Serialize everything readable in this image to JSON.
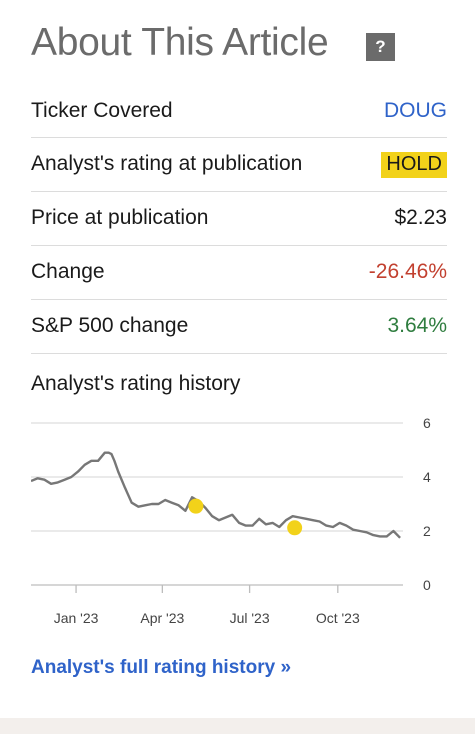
{
  "header": {
    "title": "About This Article",
    "help_icon": "?"
  },
  "rows": {
    "ticker": {
      "label": "Ticker Covered",
      "value": "DOUG"
    },
    "rating": {
      "label": "Analyst's rating at publication",
      "value": "HOLD"
    },
    "price": {
      "label": "Price at publication",
      "value": "$2.23"
    },
    "change": {
      "label": "Change",
      "value": "-26.46%"
    },
    "sp500": {
      "label": "S&P 500 change",
      "value": "3.64%"
    }
  },
  "history": {
    "label": "Analyst's rating history"
  },
  "full_history_link": "Analyst's full rating history »",
  "colors": {
    "link": "#2f63c9",
    "hold_badge": "#f2d21a",
    "negative": "#c2402f",
    "positive": "#2f7d3f",
    "line": "#777777",
    "marker": "#f2d21a"
  },
  "chart_data": {
    "type": "line",
    "x_ticks": [
      "Jan '23",
      "Apr '23",
      "Jul '23",
      "Oct '23"
    ],
    "x_tick_dates": [
      "2023-01-01",
      "2023-04-01",
      "2023-07-01",
      "2023-10-01"
    ],
    "y_ticks": [
      "0",
      "2",
      "4",
      "6"
    ],
    "ylim": [
      0,
      6
    ],
    "xlim": [
      "2022-11-15",
      "2023-12-08"
    ],
    "grid": true,
    "series": [
      {
        "x": [
          "2022-11-15",
          "2022-11-22",
          "2022-11-29",
          "2022-12-06",
          "2022-12-13",
          "2022-12-20",
          "2022-12-27",
          "2023-01-03",
          "2023-01-10",
          "2023-01-17",
          "2023-01-24",
          "2023-01-31",
          "2023-02-04",
          "2023-02-07",
          "2023-02-10",
          "2023-02-14",
          "2023-02-21",
          "2023-02-28",
          "2023-03-07",
          "2023-03-14",
          "2023-03-21",
          "2023-03-28",
          "2023-04-04",
          "2023-04-11",
          "2023-04-18",
          "2023-04-25",
          "2023-05-02",
          "2023-05-09",
          "2023-05-16",
          "2023-05-23",
          "2023-05-30",
          "2023-06-06",
          "2023-06-13",
          "2023-06-20",
          "2023-06-27",
          "2023-07-04",
          "2023-07-11",
          "2023-07-18",
          "2023-07-25",
          "2023-08-01",
          "2023-08-08",
          "2023-08-15",
          "2023-08-22",
          "2023-08-29",
          "2023-09-05",
          "2023-09-12",
          "2023-09-19",
          "2023-09-26",
          "2023-10-03",
          "2023-10-10",
          "2023-10-17",
          "2023-10-24",
          "2023-10-31",
          "2023-11-07",
          "2023-11-14",
          "2023-11-21",
          "2023-11-28",
          "2023-12-05"
        ],
        "values": [
          3.85,
          3.95,
          3.9,
          3.75,
          3.8,
          3.9,
          4.0,
          4.2,
          4.45,
          4.6,
          4.6,
          4.9,
          4.9,
          4.85,
          4.6,
          4.2,
          3.6,
          3.05,
          2.9,
          2.95,
          3.0,
          3.0,
          3.15,
          3.05,
          2.95,
          2.75,
          3.25,
          3.1,
          2.85,
          2.55,
          2.4,
          2.5,
          2.6,
          2.3,
          2.2,
          2.2,
          2.45,
          2.25,
          2.3,
          2.15,
          2.4,
          2.55,
          2.5,
          2.45,
          2.4,
          2.35,
          2.2,
          2.15,
          2.3,
          2.2,
          2.05,
          2.0,
          1.95,
          1.85,
          1.8,
          1.8,
          2.0,
          1.75
        ]
      }
    ],
    "markers": [
      {
        "x": "2023-05-06",
        "y": 2.92
      },
      {
        "x": "2023-08-17",
        "y": 2.12
      }
    ]
  }
}
